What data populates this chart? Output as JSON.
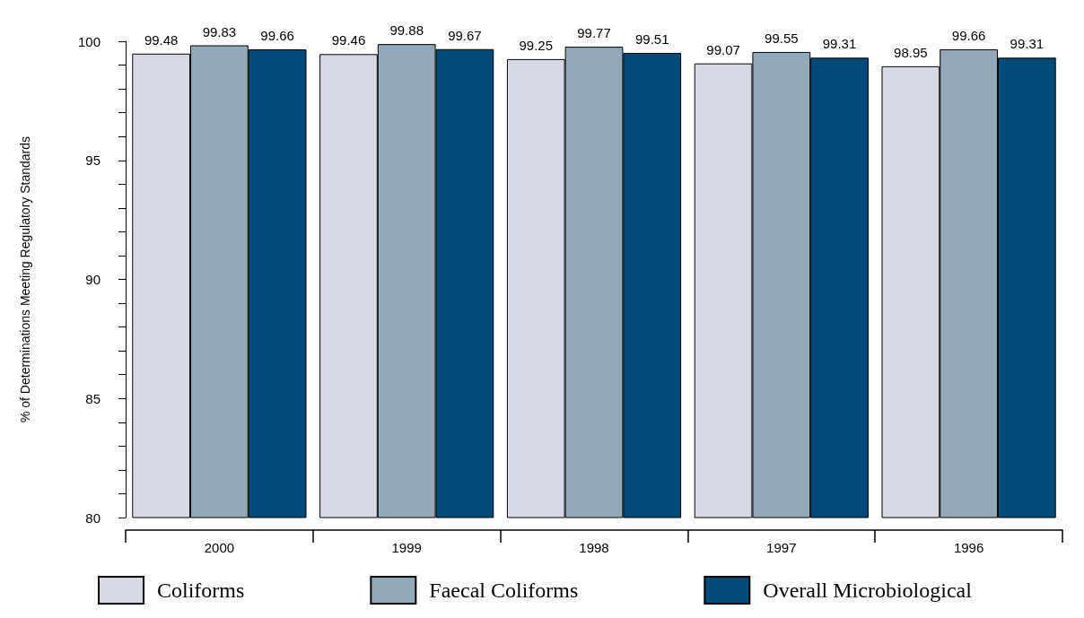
{
  "chart_data": {
    "type": "bar",
    "ylabel": "% of Determinations Meeting Regulatory Standards",
    "categories": [
      "2000",
      "1999",
      "1998",
      "1997",
      "1996"
    ],
    "series": [
      {
        "name": "Coliforms",
        "color": "#d6d9e4",
        "values": [
          99.48,
          99.46,
          99.25,
          99.07,
          98.95
        ]
      },
      {
        "name": "Faecal Coliforms",
        "color": "#91a9b8",
        "values": [
          99.83,
          99.88,
          99.77,
          99.55,
          99.66
        ]
      },
      {
        "name": "Overall Microbiological",
        "color": "#004b7a",
        "values": [
          99.66,
          99.67,
          99.51,
          99.31,
          99.31
        ]
      }
    ],
    "ylim": [
      80,
      100
    ],
    "yticks": [
      80,
      {
        "value": 81,
        "label": null
      },
      {
        "value": 82,
        "label": null
      },
      {
        "value": 83,
        "label": null
      },
      {
        "value": 84,
        "label": null
      },
      85,
      {
        "value": 86,
        "label": null
      },
      {
        "value": 87,
        "label": null
      },
      {
        "value": 88,
        "label": null
      },
      {
        "value": 89,
        "label": null
      },
      90,
      {
        "value": 91,
        "label": null
      },
      {
        "value": 92,
        "label": null
      },
      {
        "value": 93,
        "label": null
      },
      {
        "value": 94,
        "label": null
      },
      95,
      {
        "value": 96,
        "label": null
      },
      {
        "value": 97,
        "label": null
      },
      {
        "value": 98,
        "label": null
      },
      {
        "value": 99,
        "label": null
      },
      100
    ],
    "data_labels": true,
    "grid": false,
    "legend": "bottom"
  }
}
